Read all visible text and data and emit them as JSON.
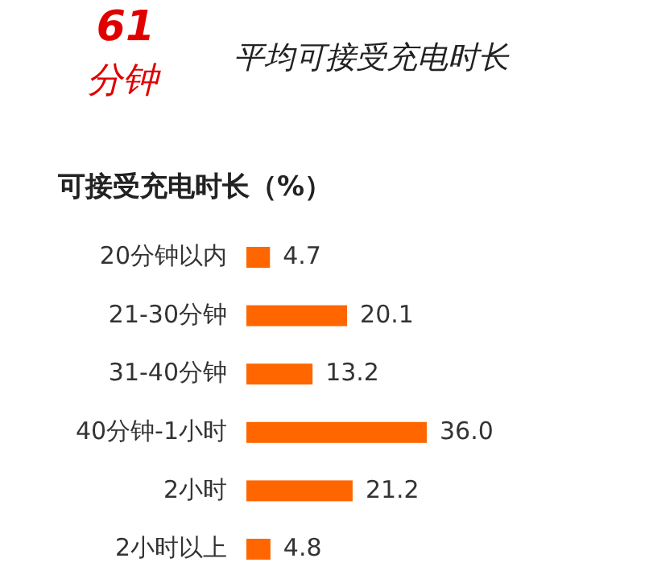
{
  "chart_data": {
    "type": "bar",
    "orientation": "horizontal",
    "title": "平均可接受充电时长",
    "subtitle": "可接受充电时长（%）",
    "annotations": [
      "61",
      "分钟"
    ],
    "categories": [
      "20分钟以内",
      "21-30分钟",
      "31-40分钟",
      "40分钟-1小时",
      "2小时",
      "2小时以上"
    ],
    "values": [
      4.7,
      20.1,
      13.2,
      36.0,
      21.2,
      4.8
    ],
    "value_labels": [
      "4.7",
      "20.1",
      "13.2",
      "36.0",
      "21.2",
      "4.8"
    ],
    "color": "#ff6600"
  }
}
